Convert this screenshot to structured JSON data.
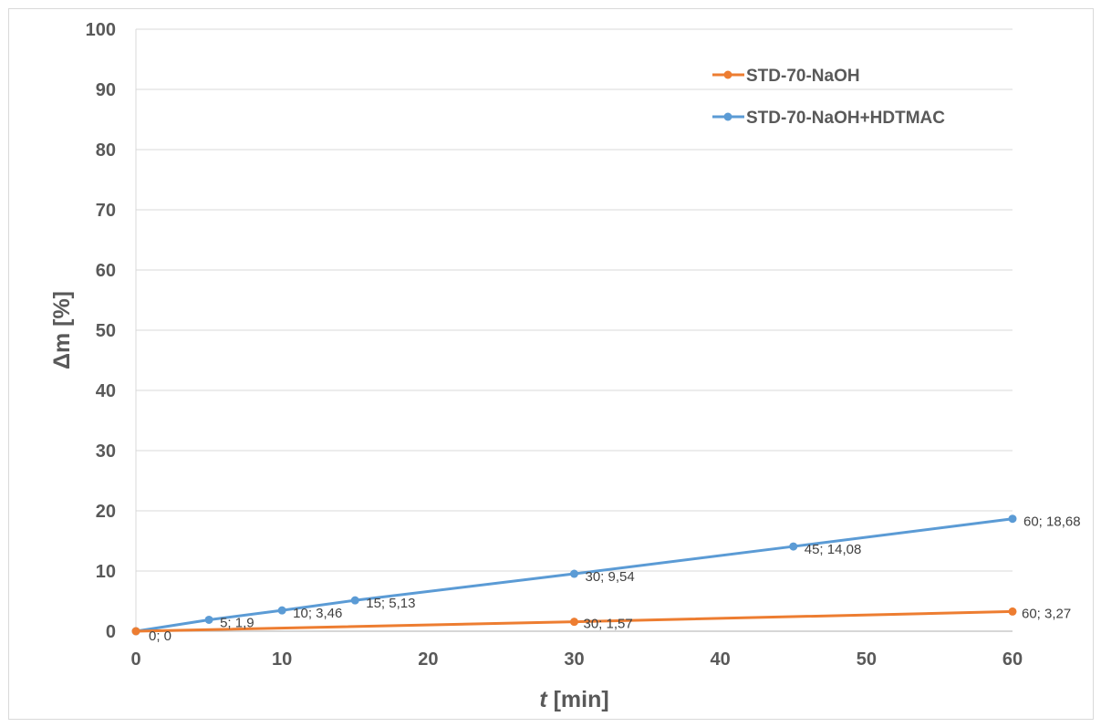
{
  "chart_data": {
    "type": "line",
    "xlabel_italic": "t",
    "xlabel_rest": " [min]",
    "ylabel": "Δm [%]",
    "xlim": [
      0,
      60
    ],
    "ylim": [
      0,
      100
    ],
    "xticks": [
      0,
      10,
      20,
      30,
      40,
      50,
      60
    ],
    "yticks": [
      0,
      10,
      20,
      30,
      40,
      50,
      60,
      70,
      80,
      90,
      100
    ],
    "grid": "horizontal",
    "legend_position": "top-right",
    "series": [
      {
        "name": "STD-70-NaOH",
        "color": "#ED7D31",
        "x": [
          0,
          30,
          60
        ],
        "y": [
          0,
          1.57,
          3.27
        ],
        "labels": [
          "",
          "30; 1,57",
          "60; 3,27"
        ]
      },
      {
        "name": "STD-70-NaOH+HDTMAC",
        "color": "#5B9BD5",
        "x": [
          0,
          5,
          10,
          15,
          30,
          45,
          60
        ],
        "y": [
          0,
          1.9,
          3.46,
          5.13,
          9.54,
          14.08,
          18.68
        ],
        "labels": [
          "0; 0",
          "5; 1,9",
          "10; 3,46",
          "15; 5,13",
          "30; 9,54",
          "45; 14,08",
          "60; 18,68"
        ]
      }
    ]
  }
}
